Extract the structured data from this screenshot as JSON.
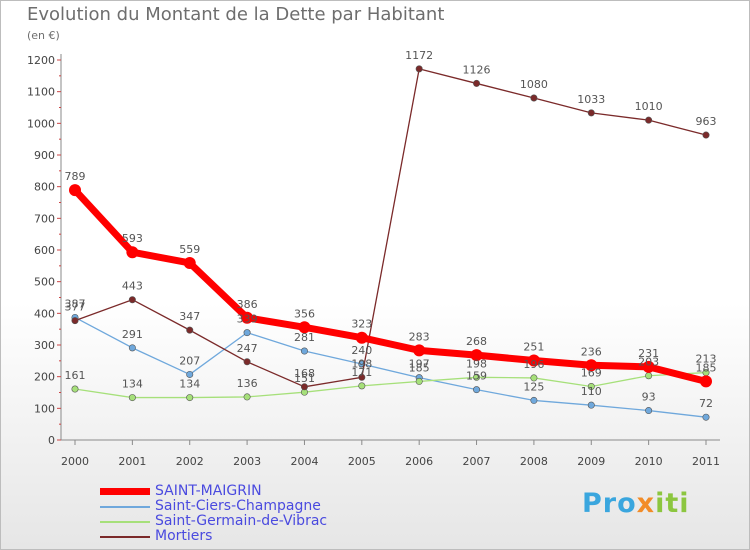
{
  "header": {
    "title": "Evolution du Montant de la Dette par Habitant",
    "subtitle": "(en €)"
  },
  "brand": {
    "p1": "Pro",
    "p2": "x",
    "p3": "iti"
  },
  "chart_data": {
    "type": "line",
    "x": [
      "2000",
      "2001",
      "2002",
      "2003",
      "2004",
      "2005",
      "2006",
      "2007",
      "2008",
      "2009",
      "2010",
      "2011"
    ],
    "ylim": [
      0,
      1200
    ],
    "yticks": [
      0,
      100,
      200,
      300,
      400,
      500,
      600,
      700,
      800,
      900,
      1000,
      1100,
      1200
    ],
    "grid": false,
    "legend_position": "bottom-left",
    "series": [
      {
        "name": "SAINT-MAIGRIN",
        "color": "#ff0000",
        "values": [
          789,
          593,
          559,
          386,
          356,
          323,
          283,
          268,
          251,
          236,
          231,
          185
        ],
        "labels": [
          "789",
          "593",
          "559",
          "386",
          "356",
          "323",
          "283",
          "268",
          "251",
          "236",
          "231",
          "185"
        ]
      },
      {
        "name": "Saint-Ciers-Champagne",
        "color": "#6fa8dc",
        "values": [
          387,
          291,
          207,
          339,
          281,
          240,
          197,
          159,
          125,
          110,
          93,
          72
        ],
        "labels": [
          "387",
          "291",
          "207",
          "339",
          "281",
          "240",
          "197",
          "159",
          "125",
          "110",
          "93",
          "72"
        ]
      },
      {
        "name": "Saint-Germain-de-Vibrac",
        "color": "#a6e07a",
        "values": [
          161,
          134,
          134,
          136,
          151,
          171,
          185,
          198,
          196,
          169,
          203,
          213
        ],
        "labels": [
          "161",
          "134",
          "134",
          "136",
          "151",
          "171",
          "185",
          "198",
          "196",
          "169",
          "203",
          "213"
        ]
      },
      {
        "name": "Mortiers",
        "color": "#7b2a2a",
        "values": [
          377,
          443,
          347,
          247,
          168,
          198,
          1172,
          1126,
          1080,
          1033,
          1010,
          963
        ],
        "labels": [
          "377",
          "443",
          "347",
          "247",
          "168",
          "198",
          "1172",
          "1126",
          "1080",
          "1033",
          "1010",
          "963"
        ]
      }
    ]
  }
}
